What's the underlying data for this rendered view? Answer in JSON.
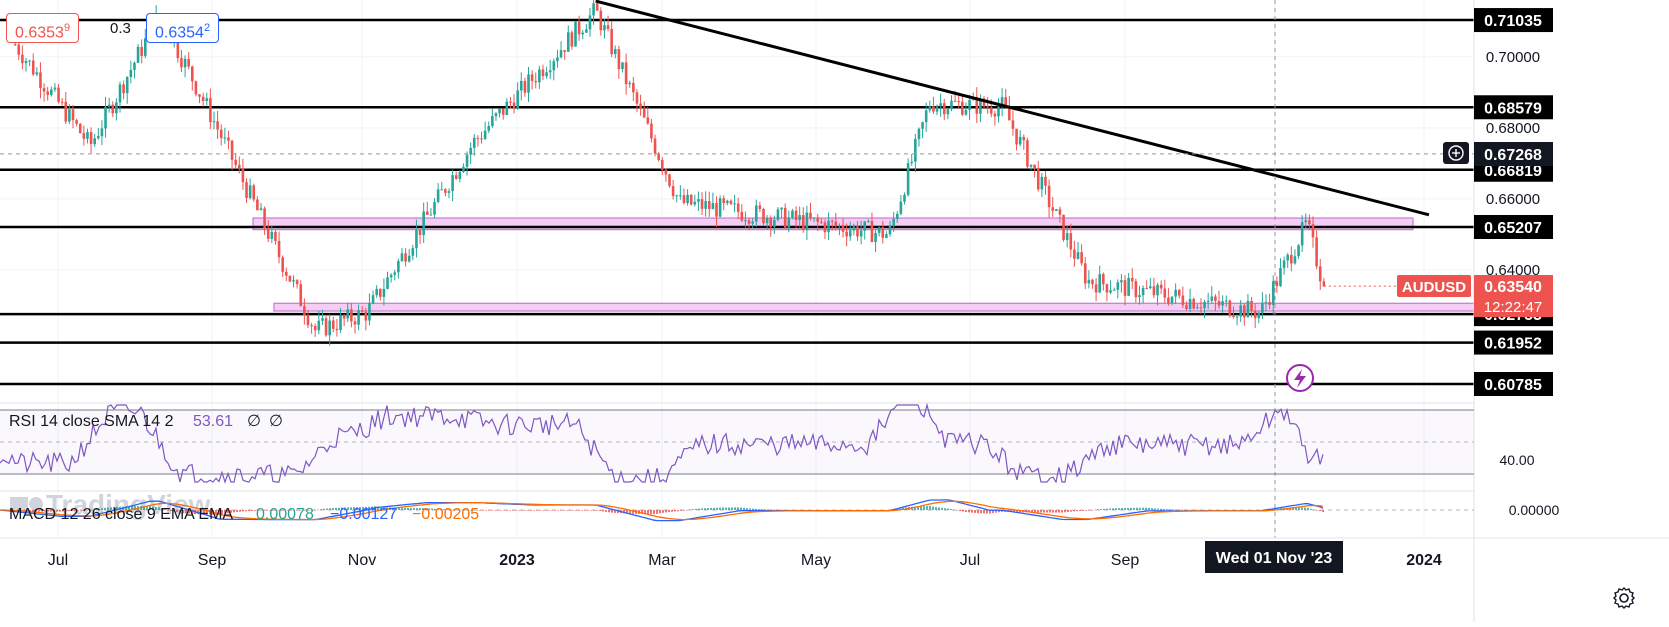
{
  "symbol": "AUDUSD",
  "last_price": "0.63540",
  "countdown": "12:22:47",
  "sell_price": "0.6353",
  "sell_price_small": "9",
  "buy_price": "0.6354",
  "buy_price_small": "2",
  "spread": "0.3",
  "crosshair_price": "0.67268",
  "crosshair_date": "Wed 01 Nov '23",
  "watermark": "TradingView",
  "colors": {
    "up": "#26a69a",
    "down": "#ef5350",
    "rsi_line": "#7e57c2",
    "macd_line": "#2962ff",
    "signal_line": "#ff6d00",
    "zone_fill": "#f3c6f4",
    "zone_border": "#ba68c8",
    "level_line": "#000000",
    "axis_text": "#131722"
  },
  "levels": [
    "0.71035",
    "0.68579",
    "0.66819",
    "0.65207",
    "0.62753",
    "0.61952",
    "0.60785"
  ],
  "price_axis_ticks": [
    "0.70000",
    "0.68000",
    "0.66000",
    "0.64000"
  ],
  "rsi": {
    "label": "RSI 14 close SMA 14 2",
    "value": "53.61",
    "extra1": "∅",
    "extra2": "∅",
    "axis_tick": "40.00"
  },
  "macd": {
    "label": "MACD 12 26 close 9 EMA EMA",
    "histogram": "0.00078",
    "macd": "−0.00127",
    "signal": "−0.00205",
    "axis_tick": "0.00000"
  },
  "chart_data": {
    "type": "candlestick",
    "symbol": "AUDUSD",
    "x_ticks": [
      "Jul",
      "Sep",
      "Nov",
      "2023",
      "Mar",
      "May",
      "Jul",
      "Sep",
      "2024"
    ],
    "y_ticks": [
      0.7,
      0.68,
      0.66,
      0.64
    ],
    "ylim": [
      0.6025,
      0.716
    ],
    "horizontal_levels": [
      0.71035,
      0.68579,
      0.66819,
      0.65207,
      0.62753,
      0.61952,
      0.60785
    ],
    "zones": [
      {
        "from": 0.6513,
        "to": 0.6546
      },
      {
        "from": 0.6284,
        "to": 0.6306
      }
    ],
    "trendline": [
      {
        "date": "2023-02-02",
        "value": 0.7157
      },
      {
        "date": "2024-01-03",
        "value": 0.6555
      }
    ],
    "series": [
      {
        "name": "AUDUSD",
        "key_points": [
          {
            "date": "2022-06-10",
            "value": 0.705
          },
          {
            "date": "2022-07-14",
            "value": 0.675
          },
          {
            "date": "2022-08-11",
            "value": 0.712
          },
          {
            "date": "2022-09-01",
            "value": 0.683
          },
          {
            "date": "2022-10-13",
            "value": 0.623
          },
          {
            "date": "2022-11-03",
            "value": 0.628
          },
          {
            "date": "2022-12-15",
            "value": 0.676
          },
          {
            "date": "2023-02-02",
            "value": 0.713
          },
          {
            "date": "2023-03-08",
            "value": 0.659
          },
          {
            "date": "2023-05-30",
            "value": 0.65
          },
          {
            "date": "2023-06-15",
            "value": 0.687
          },
          {
            "date": "2023-07-14",
            "value": 0.686
          },
          {
            "date": "2023-08-17",
            "value": 0.637
          },
          {
            "date": "2023-10-26",
            "value": 0.628
          },
          {
            "date": "2023-11-14",
            "value": 0.653
          },
          {
            "date": "2023-11-21",
            "value": 0.6354
          }
        ]
      }
    ],
    "rsi_value": 53.61,
    "macd_values": {
      "histogram": 0.00078,
      "macd": -0.00127,
      "signal": -0.00205
    }
  }
}
